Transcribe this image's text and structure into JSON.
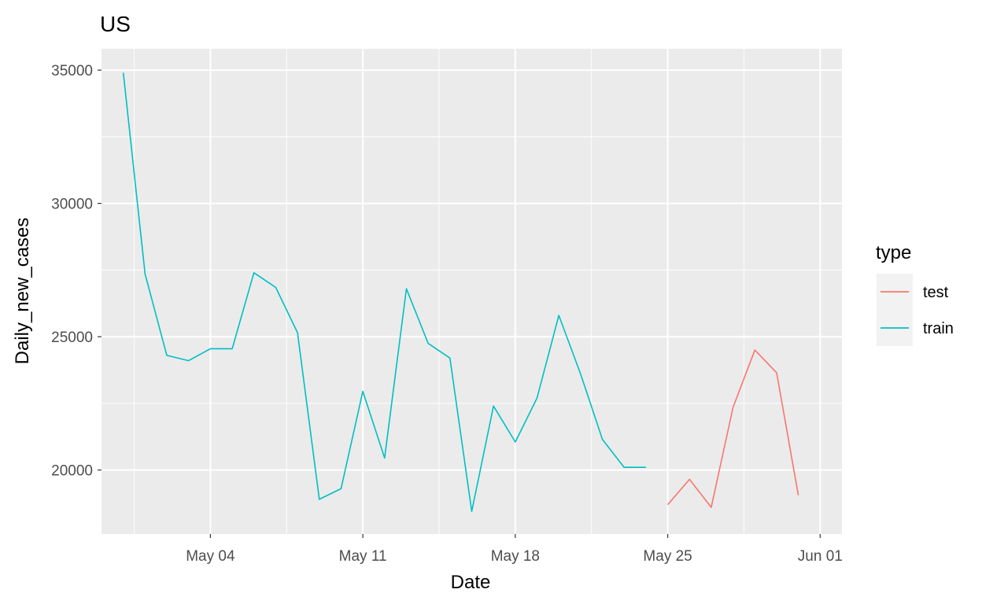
{
  "chart_data": {
    "type": "line",
    "title": "US",
    "xlabel": "Date",
    "ylabel": "Daily_new_cases",
    "x_axis_type": "date",
    "xlim": [
      "2020-04-29",
      "2020-06-02"
    ],
    "ylim": [
      17600,
      35800
    ],
    "x_ticks": [
      {
        "date": "2020-05-04",
        "label": "May 04"
      },
      {
        "date": "2020-05-11",
        "label": "May 11"
      },
      {
        "date": "2020-05-18",
        "label": "May 18"
      },
      {
        "date": "2020-05-25",
        "label": "May 25"
      },
      {
        "date": "2020-06-01",
        "label": "Jun 01"
      }
    ],
    "y_ticks": [
      20000,
      25000,
      30000,
      35000
    ],
    "y_tick_labels": [
      "20000",
      "25000",
      "30000",
      "35000"
    ],
    "grid": true,
    "background": "#EBEBEB",
    "legend": {
      "title": "type",
      "position": "right"
    },
    "series": [
      {
        "name": "test",
        "color": "#F8766D",
        "x": [
          "2020-05-25",
          "2020-05-26",
          "2020-05-27",
          "2020-05-28",
          "2020-05-29",
          "2020-05-30",
          "2020-05-31"
        ],
        "y": [
          18700,
          19650,
          18600,
          22350,
          24500,
          23650,
          19050
        ]
      },
      {
        "name": "train",
        "color": "#00BFC4",
        "x": [
          "2020-04-30",
          "2020-05-01",
          "2020-05-02",
          "2020-05-03",
          "2020-05-04",
          "2020-05-05",
          "2020-05-06",
          "2020-05-07",
          "2020-05-08",
          "2020-05-09",
          "2020-05-10",
          "2020-05-11",
          "2020-05-12",
          "2020-05-13",
          "2020-05-14",
          "2020-05-15",
          "2020-05-16",
          "2020-05-17",
          "2020-05-18",
          "2020-05-19",
          "2020-05-20",
          "2020-05-21",
          "2020-05-22",
          "2020-05-23",
          "2020-05-24"
        ],
        "y": [
          34900,
          27350,
          24300,
          24100,
          24550,
          24550,
          27400,
          26850,
          25150,
          18900,
          19300,
          22950,
          20450,
          26800,
          24750,
          24200,
          18450,
          22400,
          21050,
          22700,
          25800,
          23600,
          21150,
          20100,
          20100
        ]
      }
    ]
  }
}
